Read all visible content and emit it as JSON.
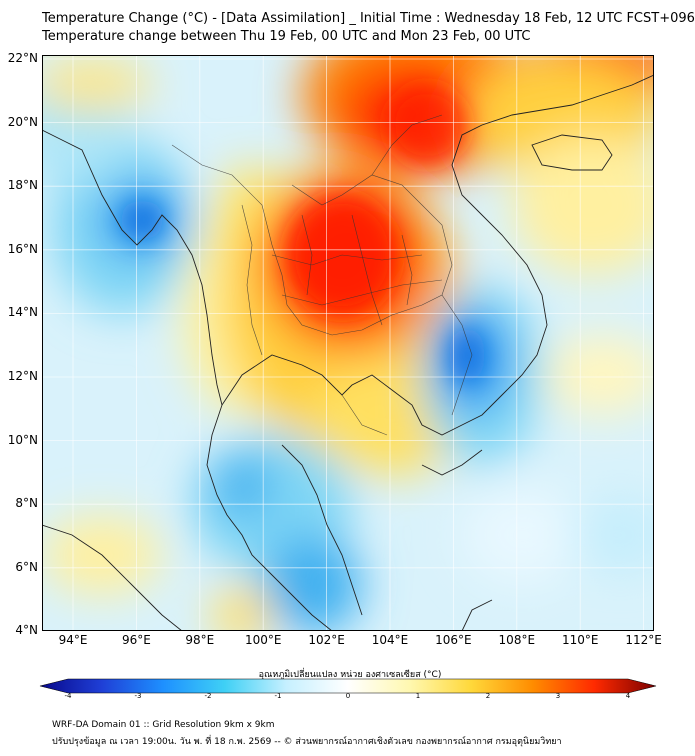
{
  "title_line1": "Temperature Change (°C) - [Data Assimilation] _ Initial Time : Wednesday 18 Feb, 12 UTC FCST+096",
  "title_line2": "Temperature change between Thu 19 Feb, 00 UTC and Mon 23 Feb, 00 UTC",
  "lat_labels": [
    "22°N",
    "20°N",
    "18°N",
    "16°N",
    "14°N",
    "12°N",
    "10°N",
    "8°N",
    "6°N",
    "4°N"
  ],
  "lon_labels": [
    "94°E",
    "96°E",
    "98°E",
    "100°E",
    "102°E",
    "104°E",
    "106°E",
    "108°E",
    "110°E",
    "112°E"
  ],
  "colorbar": {
    "title": "อุณหภูมิเปลี่ยนแปลง หน่วย องศาเซลเซียส (°C)",
    "tick_labels": [
      "-4",
      "-3",
      "-2",
      "-1",
      "0",
      "1",
      "2",
      "3",
      "4"
    ],
    "colors": [
      "#08088a",
      "#1f3fd6",
      "#1e90ff",
      "#3fd0f5",
      "#c6f0ff",
      "#ffffff",
      "#fff8b0",
      "#ffd83a",
      "#ff8c00",
      "#ff2a00",
      "#7a0000"
    ]
  },
  "footer_line1": "WRF-DA Domain 01 :: Grid Resolution 9km x 9km",
  "footer_line2": "ปรับปรุงข้อมูล ณ เวลา 19:00น. วัน พ. ที่ 18 ก.พ. 2569 -- © ส่วนพยากรณ์อากาศเชิงตัวเลข กองพยากรณ์อากาศ กรมอุตุนิยมวิทยา"
}
